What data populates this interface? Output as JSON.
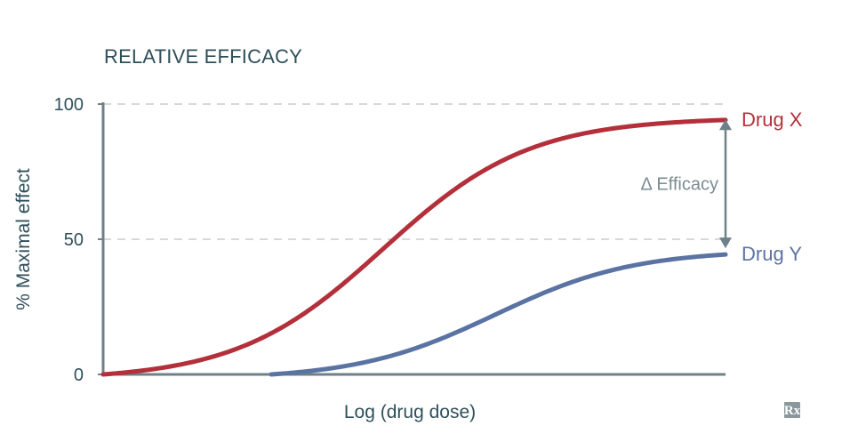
{
  "chart_data": {
    "type": "line",
    "title": "RELATIVE EFFICACY",
    "xlabel": "Log (drug dose)",
    "ylabel": "% Maximal effect",
    "xlim": [
      0,
      100
    ],
    "ylim": [
      0,
      100
    ],
    "yticks": [
      0,
      50,
      100
    ],
    "ytick_labels": [
      "0",
      "50",
      "100"
    ],
    "grid": "dashed horizontal at 50 and 100",
    "series": [
      {
        "name": "Drug X",
        "color": "#b3303b",
        "emax": 95,
        "ec50": 45,
        "slope": 0.085,
        "x_start": 0,
        "x_end": 100
      },
      {
        "name": "Drug Y",
        "color": "#5b73a3",
        "emax": 46,
        "ec50": 63,
        "slope": 0.09,
        "x_start": 27,
        "x_end": 100
      }
    ],
    "annotation": {
      "text": "Δ Efficacy",
      "from": 95,
      "to": 46,
      "x": 100,
      "color": "#6f8188"
    }
  },
  "logo": {
    "text": "Rx",
    "icon": "rx-logo-icon"
  }
}
